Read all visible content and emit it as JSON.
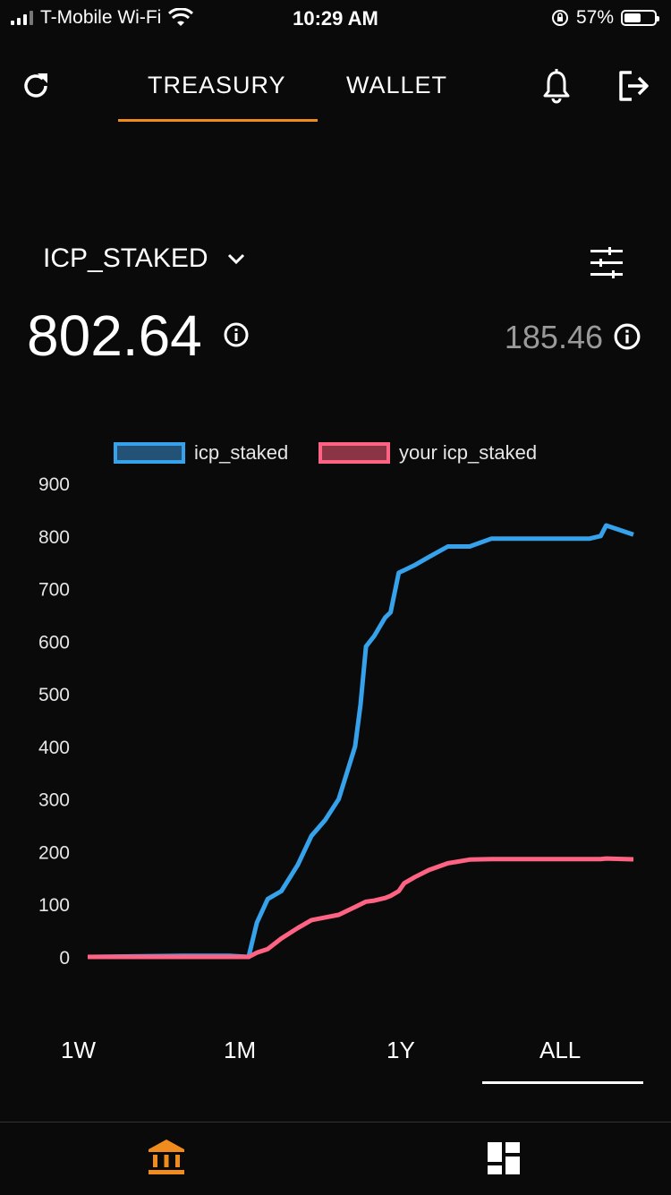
{
  "status_bar": {
    "carrier": "T-Mobile Wi-Fi",
    "time": "10:29 AM",
    "battery": "57%",
    "battery_level": 0.57
  },
  "topnav": {
    "tabs": [
      {
        "label": "TREASURY",
        "active": true
      },
      {
        "label": "WALLET",
        "active": false
      }
    ],
    "accent_color": "#f08c1e"
  },
  "metric": {
    "name": "ICP_STAKED",
    "total": "802.64",
    "yours": "185.46"
  },
  "ranges": [
    {
      "label": "1W",
      "active": false
    },
    {
      "label": "1M",
      "active": false
    },
    {
      "label": "1Y",
      "active": false
    },
    {
      "label": "ALL",
      "active": true
    }
  ],
  "bottom_nav": {
    "items": [
      {
        "icon": "bank-icon",
        "active": true
      },
      {
        "icon": "dashboard-icon",
        "active": false
      }
    ]
  },
  "chart_data": {
    "type": "line",
    "ylim": [
      0,
      900
    ],
    "yticks": [
      "900",
      "800",
      "700",
      "600",
      "500",
      "400",
      "300",
      "200",
      "100",
      "0"
    ],
    "x": [
      0,
      0.175,
      0.26,
      0.295,
      0.31,
      0.33,
      0.355,
      0.385,
      0.41,
      0.435,
      0.46,
      0.49,
      0.5,
      0.51,
      0.525,
      0.545,
      0.555,
      0.57,
      0.58,
      0.6,
      0.625,
      0.66,
      0.7,
      0.74,
      0.92,
      0.94,
      0.95,
      1.0
    ],
    "legend_position": "top",
    "grid": false,
    "series": [
      {
        "name": "icp_staked",
        "color": "#36a2eb",
        "values": [
          0,
          2,
          2,
          0,
          65,
          110,
          125,
          175,
          230,
          260,
          300,
          400,
          480,
          590,
          610,
          645,
          655,
          730,
          735,
          745,
          760,
          780,
          780,
          795,
          795,
          800,
          820,
          802.64
        ]
      },
      {
        "name": "your icp_staked",
        "color": "#ff6384",
        "values": [
          0,
          0,
          0,
          0,
          8,
          15,
          35,
          55,
          70,
          75,
          80,
          95,
          100,
          105,
          107,
          112,
          116,
          125,
          140,
          152,
          165,
          178,
          185,
          186,
          186,
          186,
          187,
          185.46
        ]
      }
    ]
  }
}
